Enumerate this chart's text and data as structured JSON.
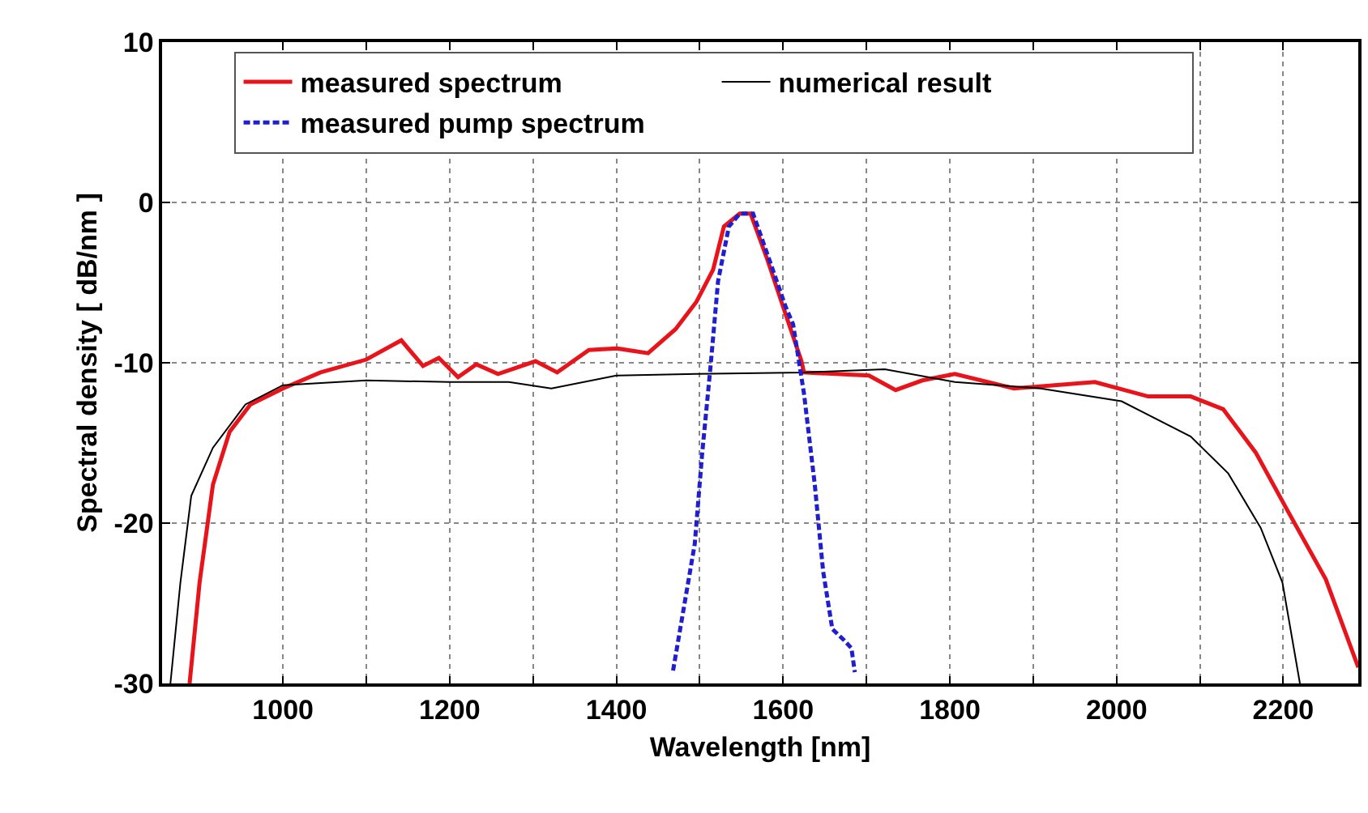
{
  "chart_data": {
    "type": "line",
    "xlabel": "Wavelength [nm]",
    "ylabel": "Spectral density [ dB/nm ]",
    "xlim": [
      855,
      2290
    ],
    "ylim": [
      -30,
      10
    ],
    "xticks": [
      1000,
      {
        "value": 1100,
        "label": null
      },
      1200,
      {
        "value": 1300,
        "label": null
      },
      1400,
      {
        "value": 1500,
        "label": null
      },
      1600,
      {
        "value": 1700,
        "label": null
      },
      1800,
      {
        "value": 1900,
        "label": null
      },
      2000,
      {
        "value": 2100,
        "label": null
      },
      2200
    ],
    "yticks": [
      -30,
      -20,
      -10,
      0,
      10
    ],
    "grid": true,
    "legend": "top",
    "marker": "none",
    "series": [
      {
        "name": "measured spectrum",
        "color": "#e8141b",
        "line_style": "solid",
        "x": [
          888,
          900,
          916,
          936,
          961,
          1000,
          1045,
          1100,
          1142,
          1168,
          1187,
          1210,
          1232,
          1258,
          1303,
          1329,
          1367,
          1400,
          1438,
          1471,
          1496,
          1516,
          1529,
          1548,
          1561,
          1580,
          1600,
          1622,
          1625,
          1703,
          1735,
          1767,
          1806,
          1877,
          1974,
          2038,
          2089,
          2128,
          2167,
          2206,
          2251,
          2290
        ],
        "values": [
          -30,
          -23.7,
          -17.6,
          -14.3,
          -12.6,
          -11.6,
          -10.6,
          -9.8,
          -8.6,
          -10.2,
          -9.7,
          -10.9,
          -10.1,
          -10.7,
          -9.9,
          -10.6,
          -9.2,
          -9.1,
          -9.4,
          -7.9,
          -6.2,
          -4.2,
          -1.5,
          -0.7,
          -0.7,
          -3.4,
          -6.5,
          -9.9,
          -10.6,
          -10.8,
          -11.7,
          -11.1,
          -10.7,
          -11.6,
          -11.2,
          -12.1,
          -12.1,
          -12.9,
          -15.6,
          -19.3,
          -23.5,
          -29
        ]
      },
      {
        "name": "numerical result",
        "color": "#000000",
        "line_style": "solid",
        "x": [
          865,
          877,
          890,
          916,
          955,
          1000,
          1100,
          1200,
          1271,
          1322,
          1400,
          1496,
          1625,
          1722,
          1806,
          1909,
          2006,
          2089,
          2134,
          2173,
          2199,
          2220
        ],
        "values": [
          -30,
          -23.7,
          -18.3,
          -15.3,
          -12.6,
          -11.4,
          -11.1,
          -11.2,
          -11.2,
          -11.6,
          -10.8,
          -10.7,
          -10.6,
          -10.4,
          -11.2,
          -11.6,
          -12.4,
          -14.6,
          -16.9,
          -20.3,
          -23.7,
          -30
        ]
      },
      {
        "name": "measured pump spectrum",
        "color": "#1f1fd0",
        "line_style": "dashed",
        "x": [
          1468,
          1494,
          1503,
          1513,
          1522,
          1535,
          1548,
          1564,
          1583,
          1603,
          1612,
          1625,
          1638,
          1648,
          1659,
          1673,
          1682,
          1686
        ],
        "values": [
          -29.2,
          -21.3,
          -15.6,
          -10.2,
          -4.9,
          -1.5,
          -0.7,
          -0.7,
          -3.5,
          -6.5,
          -7.6,
          -11.9,
          -17.6,
          -23.0,
          -26.6,
          -27.3,
          -27.8,
          -29.3
        ]
      }
    ]
  }
}
